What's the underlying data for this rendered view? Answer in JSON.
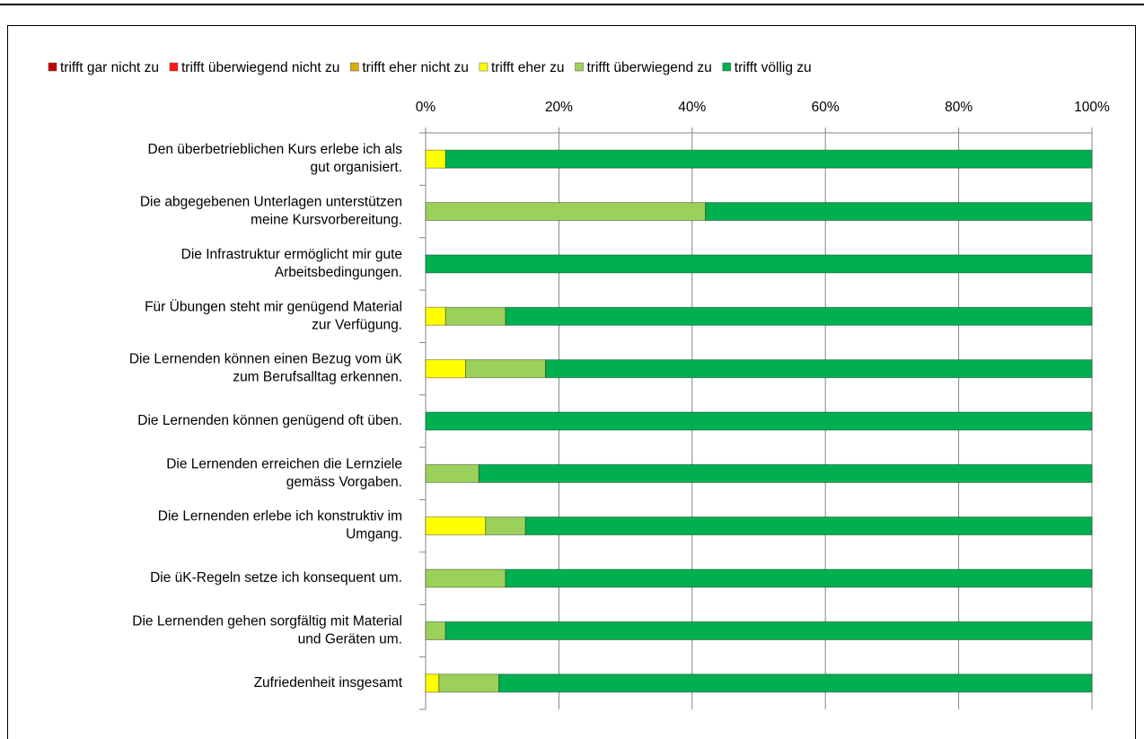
{
  "chart_data": {
    "type": "stacked-bar-horizontal",
    "categories": [
      "Den überbetrieblichen Kurs erlebe ich als\ngut organisiert.",
      "Die abgegebenen Unterlagen unterstützen\nmeine Kursvorbereitung.",
      "Die Infrastruktur ermöglicht mir gute\nArbeitsbedingungen.",
      "Für Übungen steht mir genügend Material\nzur Verfügung.",
      "Die Lernenden können einen Bezug vom üK\nzum Berufsalltag erkennen.",
      "Die Lernenden können genügend oft üben.",
      "Die Lernenden erreichen die Lernziele\ngemäss Vorgaben.",
      "Die Lernenden erlebe ich konstruktiv im\nUmgang.",
      "Die üK-Regeln setze ich konsequent um.",
      "Die Lernenden gehen sorgfältig mit Material\nund Geräten um.",
      "Zufriedenheit insgesamt"
    ],
    "series": [
      {
        "name": "trifft gar nicht zu",
        "color": "#c00000",
        "values": [
          0,
          0,
          0,
          0,
          0,
          0,
          0,
          0,
          0,
          0,
          0
        ]
      },
      {
        "name": "trifft überwiegend nicht zu",
        "color": "#ff1a1a",
        "values": [
          0,
          0,
          0,
          0,
          0,
          0,
          0,
          0,
          0,
          0,
          0
        ]
      },
      {
        "name": "trifft eher nicht zu",
        "color": "#e0a800",
        "values": [
          0,
          0,
          0,
          0,
          0,
          0,
          0,
          0,
          0,
          0,
          0
        ]
      },
      {
        "name": "trifft eher zu",
        "color": "#ffff00",
        "values": [
          3,
          0,
          0,
          3,
          6,
          0,
          0,
          9,
          0,
          0,
          2
        ]
      },
      {
        "name": "trifft überwiegend zu",
        "color": "#9bd15a",
        "values": [
          0,
          42,
          0,
          9,
          12,
          0,
          8,
          6,
          12,
          3,
          9
        ]
      },
      {
        "name": "trifft völlig zu",
        "color": "#00b050",
        "values": [
          97,
          58,
          100,
          88,
          82,
          100,
          92,
          85,
          88,
          97,
          89
        ]
      }
    ],
    "xlim": [
      0,
      100
    ],
    "xticks": [
      {
        "value": 0,
        "label": "0%"
      },
      {
        "value": 20,
        "label": "20%"
      },
      {
        "value": 40,
        "label": "40%"
      },
      {
        "value": 60,
        "label": "60%"
      },
      {
        "value": 80,
        "label": "80%"
      },
      {
        "value": 100,
        "label": "100%"
      }
    ],
    "grid": true,
    "legend": "top"
  }
}
